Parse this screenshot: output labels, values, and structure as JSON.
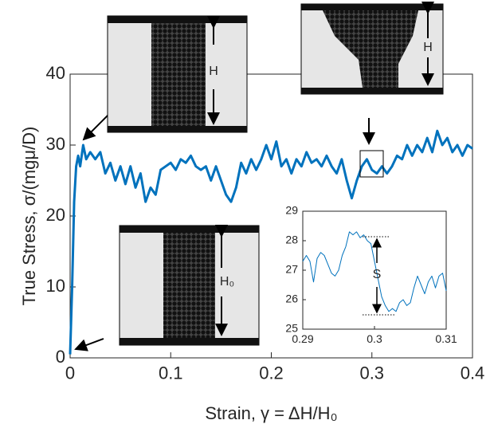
{
  "chart_data": [
    {
      "type": "line",
      "xlabel": "Strain, γ = ΔH/H₀",
      "ylabel": "True Stress, σ/(mgμ/D)",
      "xlim": [
        0,
        0.4
      ],
      "xticks": [
        0,
        0.1,
        0.2,
        0.3,
        0.4
      ],
      "ylim": [
        0,
        40
      ],
      "yticks": [
        0,
        10,
        20,
        30,
        40
      ],
      "x": [
        0,
        0.002,
        0.004,
        0.006,
        0.008,
        0.01,
        0.013,
        0.016,
        0.02,
        0.025,
        0.03,
        0.035,
        0.04,
        0.045,
        0.05,
        0.055,
        0.06,
        0.065,
        0.07,
        0.075,
        0.08,
        0.085,
        0.09,
        0.095,
        0.1,
        0.105,
        0.11,
        0.115,
        0.12,
        0.125,
        0.13,
        0.135,
        0.14,
        0.145,
        0.15,
        0.155,
        0.16,
        0.165,
        0.17,
        0.175,
        0.18,
        0.185,
        0.19,
        0.195,
        0.2,
        0.205,
        0.21,
        0.215,
        0.22,
        0.225,
        0.23,
        0.235,
        0.24,
        0.245,
        0.25,
        0.255,
        0.26,
        0.265,
        0.27,
        0.275,
        0.28,
        0.285,
        0.29,
        0.295,
        0.3,
        0.305,
        0.31,
        0.315,
        0.32,
        0.325,
        0.33,
        0.335,
        0.34,
        0.345,
        0.35,
        0.355,
        0.36,
        0.365,
        0.37,
        0.375,
        0.38,
        0.385,
        0.39,
        0.395,
        0.4
      ],
      "series": [
        {
          "color": "#0072bd",
          "values": [
            0.5,
            10,
            22,
            27,
            28.5,
            27,
            30,
            28,
            29,
            28,
            29,
            26,
            27.5,
            25,
            27,
            24.5,
            27,
            24,
            26,
            22,
            24,
            23,
            26.5,
            27,
            27.5,
            26.5,
            28,
            27.5,
            28.5,
            27,
            26.5,
            27,
            25,
            27,
            25,
            23,
            22,
            24,
            27.5,
            26,
            28,
            26.5,
            28,
            30,
            28,
            30.5,
            27,
            28,
            26,
            28,
            27,
            29,
            27.5,
            28,
            27,
            28.5,
            27,
            26,
            28,
            25,
            22.5,
            25,
            27,
            28,
            26.5,
            26,
            27,
            26,
            27,
            28.5,
            28,
            30,
            28.5,
            30,
            29,
            31,
            29,
            32,
            30,
            31,
            29,
            30,
            28.5,
            30,
            29.5
          ]
        }
      ]
    },
    {
      "type": "line",
      "annotation": "S",
      "xlim": [
        0.29,
        0.31
      ],
      "xticks": [
        0.29,
        0.3,
        0.31
      ],
      "ylim": [
        25,
        29
      ],
      "yticks": [
        25,
        26,
        27,
        28,
        29
      ],
      "x": [
        0.29,
        0.2905,
        0.291,
        0.2915,
        0.292,
        0.2925,
        0.293,
        0.2935,
        0.294,
        0.2945,
        0.295,
        0.2955,
        0.296,
        0.2965,
        0.297,
        0.2975,
        0.298,
        0.2985,
        0.299,
        0.2995,
        0.3,
        0.3005,
        0.301,
        0.3015,
        0.302,
        0.3025,
        0.303,
        0.3035,
        0.304,
        0.3045,
        0.305,
        0.3055,
        0.306,
        0.3065,
        0.307,
        0.3075,
        0.308,
        0.3085,
        0.309,
        0.3095,
        0.31
      ],
      "series": [
        {
          "color": "#0072bd",
          "values": [
            27.3,
            27.5,
            27.3,
            26.6,
            27.4,
            27.6,
            27.5,
            27.2,
            26.9,
            26.8,
            27.0,
            27.5,
            27.8,
            28.3,
            28.2,
            28.3,
            28.1,
            28.2,
            28.0,
            27.9,
            27.3,
            26.7,
            26.1,
            25.8,
            25.6,
            25.7,
            25.6,
            25.9,
            26.0,
            25.8,
            25.9,
            26.4,
            26.8,
            26.5,
            26.2,
            26.6,
            26.8,
            26.4,
            26.8,
            26.9,
            26.3
          ]
        }
      ]
    }
  ],
  "images": [
    {
      "label": "H"
    },
    {
      "label": "H"
    },
    {
      "label": "H₀"
    }
  ]
}
